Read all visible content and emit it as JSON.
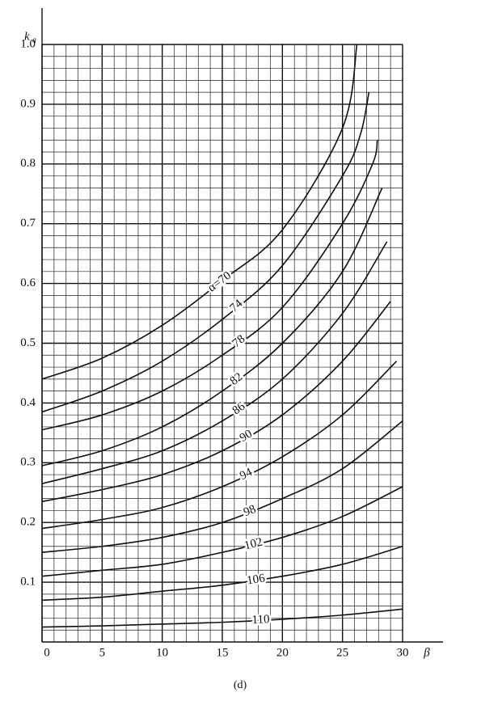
{
  "chart_data": {
    "type": "line",
    "ylabel": "k",
    "ylabel_sub": "a",
    "xlabel": "β",
    "caption": "(d)",
    "xlim": [
      0,
      30
    ],
    "ylim": [
      0,
      1
    ],
    "xticks": [
      0,
      5,
      10,
      15,
      20,
      25,
      30
    ],
    "yticks": [
      0.1,
      0.2,
      0.3,
      0.4,
      0.5,
      0.6,
      0.7,
      0.8,
      0.9,
      {
        "value": 1,
        "label": "1.0"
      }
    ],
    "grid": true,
    "color": "#111111",
    "series": [
      {
        "name": "α=70",
        "x": [
          0,
          5,
          10,
          15,
          20,
          25,
          26.2
        ],
        "values": [
          0.44,
          0.475,
          0.53,
          0.605,
          0.69,
          0.86,
          1.0
        ]
      },
      {
        "name": "74",
        "x": [
          0,
          5,
          10,
          15,
          20,
          25,
          26.5,
          27.2
        ],
        "values": [
          0.385,
          0.42,
          0.47,
          0.54,
          0.63,
          0.78,
          0.85,
          0.92
        ]
      },
      {
        "name": "78",
        "x": [
          0,
          5,
          10,
          15,
          20,
          25,
          27.5,
          27.9
        ],
        "values": [
          0.355,
          0.38,
          0.42,
          0.48,
          0.56,
          0.7,
          0.8,
          0.84
        ]
      },
      {
        "name": "82",
        "x": [
          0,
          5,
          10,
          15,
          20,
          25,
          28.3
        ],
        "values": [
          0.295,
          0.32,
          0.36,
          0.42,
          0.5,
          0.62,
          0.76
        ]
      },
      {
        "name": "86",
        "x": [
          0,
          5,
          10,
          15,
          20,
          25,
          28.7
        ],
        "values": [
          0.265,
          0.29,
          0.32,
          0.37,
          0.44,
          0.55,
          0.67
        ]
      },
      {
        "name": "90",
        "x": [
          0,
          5,
          10,
          15,
          20,
          25,
          29
        ],
        "values": [
          0.235,
          0.255,
          0.28,
          0.32,
          0.38,
          0.47,
          0.57
        ]
      },
      {
        "name": "94",
        "x": [
          0,
          5,
          10,
          15,
          20,
          25,
          29.5
        ],
        "values": [
          0.19,
          0.205,
          0.225,
          0.26,
          0.31,
          0.38,
          0.47
        ]
      },
      {
        "name": "98",
        "x": [
          0,
          5,
          10,
          15,
          20,
          25,
          30
        ],
        "values": [
          0.15,
          0.16,
          0.175,
          0.2,
          0.24,
          0.29,
          0.37
        ]
      },
      {
        "name": "102",
        "x": [
          0,
          5,
          10,
          15,
          20,
          25,
          30
        ],
        "values": [
          0.11,
          0.12,
          0.13,
          0.15,
          0.175,
          0.21,
          0.26
        ]
      },
      {
        "name": "106",
        "x": [
          0,
          5,
          10,
          15,
          20,
          25,
          30
        ],
        "values": [
          0.07,
          0.075,
          0.085,
          0.095,
          0.11,
          0.13,
          0.16
        ]
      },
      {
        "name": "110",
        "x": [
          0,
          5,
          10,
          15,
          20,
          25,
          30
        ],
        "values": [
          0.025,
          0.027,
          0.03,
          0.033,
          0.038,
          0.045,
          0.055
        ]
      }
    ]
  }
}
